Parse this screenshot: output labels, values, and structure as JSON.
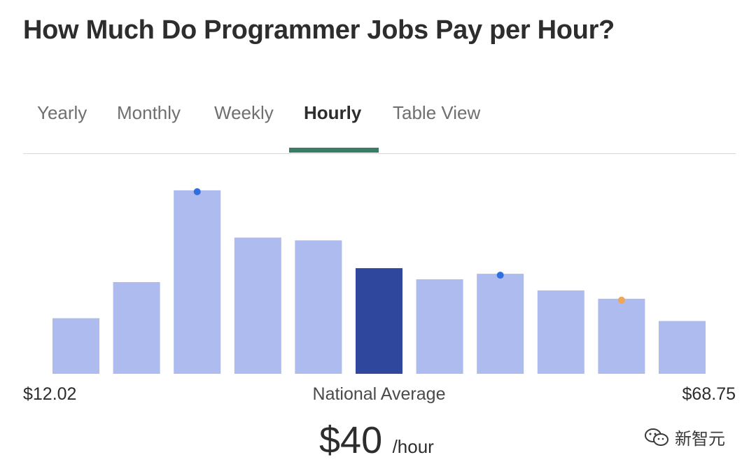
{
  "title": "How Much Do Programmer Jobs Pay per Hour?",
  "tabs": [
    {
      "label": "Yearly",
      "active": false
    },
    {
      "label": "Monthly",
      "active": false
    },
    {
      "label": "Weekly",
      "active": false
    },
    {
      "label": "Hourly",
      "active": true
    },
    {
      "label": "Table View",
      "active": false
    }
  ],
  "colors": {
    "bar": "#adbbee",
    "highlight_bar": "#2f479d",
    "tab_underline": "#3a7d66",
    "marker_blue": "#2f6fe0",
    "marker_orange": "#f0a55a"
  },
  "chart_data": {
    "type": "bar",
    "bin_count": 11,
    "x_min": "$12.02",
    "x_max": "$68.75",
    "values": [
      1.0,
      1.65,
      3.3,
      2.45,
      2.4,
      1.9,
      1.7,
      1.8,
      1.5,
      1.35,
      0.95
    ],
    "ylim": [
      0,
      3.4
    ],
    "highlight_index": 5,
    "markers": [
      {
        "bin": 2,
        "color": "#2f6fe0"
      },
      {
        "bin": 7,
        "color": "#2f6fe0"
      },
      {
        "bin": 9,
        "color": "#f0a55a"
      }
    ],
    "grid": false
  },
  "summary": {
    "average_label": "National Average",
    "average_value": "$40",
    "average_unit": "/hour"
  },
  "watermark": {
    "text": "新智元",
    "icon": "wechat-icon"
  }
}
